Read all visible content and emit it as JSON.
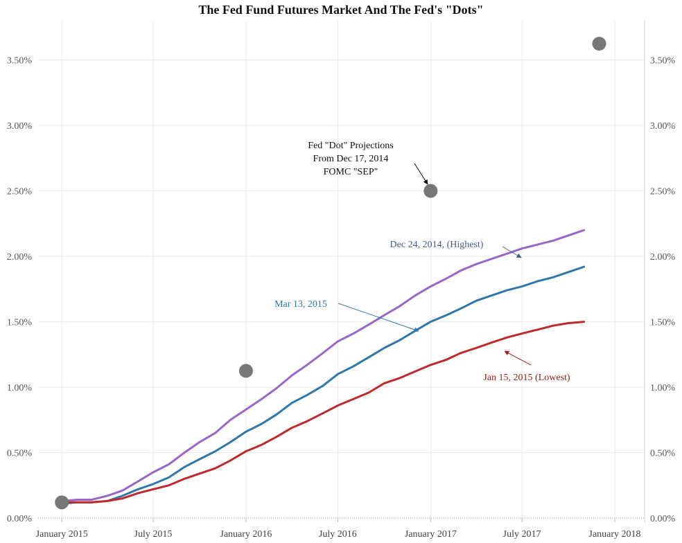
{
  "chart_data": {
    "type": "line",
    "title": "The Fed Fund Futures Market And  The Fed's \"Dots\"",
    "xlabel": "",
    "ylabel": "",
    "x_domain": [
      "2014-11-15",
      "2018-03-01"
    ],
    "ylim": [
      0,
      3.8
    ],
    "y_ticks": [
      0,
      0.5,
      1.0,
      1.5,
      2.0,
      2.5,
      3.0,
      3.5
    ],
    "y_tick_labels": [
      "0.00%",
      "0.50%",
      "1.00%",
      "1.50%",
      "2.00%",
      "2.50%",
      "3.00%",
      "3.50%"
    ],
    "x_ticks": [
      {
        "date": "2015-01-01",
        "label": "January 2015"
      },
      {
        "date": "2015-07-01",
        "label": "July 2015"
      },
      {
        "date": "2016-01-01",
        "label": "January 2016"
      },
      {
        "date": "2016-07-01",
        "label": "July 2016"
      },
      {
        "date": "2017-01-01",
        "label": "January 2017"
      },
      {
        "date": "2017-07-01",
        "label": "July 2017"
      },
      {
        "date": "2018-01-01",
        "label": "January 2018"
      }
    ],
    "grid": true,
    "dual_y_axis": true,
    "series": [
      {
        "name": "Dec 24, 2014, (Highest)",
        "color": "#9966c8",
        "x": [
          "2015-01-01",
          "2015-02-01",
          "2015-03-01",
          "2015-04-01",
          "2015-05-01",
          "2015-06-01",
          "2015-07-01",
          "2015-08-01",
          "2015-09-01",
          "2015-10-01",
          "2015-11-01",
          "2015-12-01",
          "2016-01-01",
          "2016-02-01",
          "2016-03-01",
          "2016-04-01",
          "2016-05-01",
          "2016-06-01",
          "2016-07-01",
          "2016-08-01",
          "2016-09-01",
          "2016-10-01",
          "2016-11-01",
          "2016-12-01",
          "2017-01-01",
          "2017-02-01",
          "2017-03-01",
          "2017-04-01",
          "2017-05-01",
          "2017-06-01",
          "2017-07-01",
          "2017-08-01",
          "2017-09-01",
          "2017-10-01",
          "2017-11-01"
        ],
        "values": [
          0.13,
          0.14,
          0.14,
          0.17,
          0.21,
          0.28,
          0.35,
          0.41,
          0.5,
          0.58,
          0.65,
          0.75,
          0.83,
          0.91,
          0.99,
          1.09,
          1.17,
          1.26,
          1.35,
          1.41,
          1.48,
          1.55,
          1.62,
          1.7,
          1.77,
          1.83,
          1.89,
          1.94,
          1.98,
          2.02,
          2.06,
          2.09,
          2.12,
          2.16,
          2.2
        ]
      },
      {
        "name": "Mar 13, 2015",
        "color": "#2e77a8",
        "x": [
          "2015-01-01",
          "2015-02-01",
          "2015-03-01",
          "2015-04-01",
          "2015-05-01",
          "2015-06-01",
          "2015-07-01",
          "2015-08-01",
          "2015-09-01",
          "2015-10-01",
          "2015-11-01",
          "2015-12-01",
          "2016-01-01",
          "2016-02-01",
          "2016-03-01",
          "2016-04-01",
          "2016-05-01",
          "2016-06-01",
          "2016-07-01",
          "2016-08-01",
          "2016-09-01",
          "2016-10-01",
          "2016-11-01",
          "2016-12-01",
          "2017-01-01",
          "2017-02-01",
          "2017-03-01",
          "2017-04-01",
          "2017-05-01",
          "2017-06-01",
          "2017-07-01",
          "2017-08-01",
          "2017-09-01",
          "2017-10-01",
          "2017-11-01"
        ],
        "values": [
          0.11,
          0.12,
          0.12,
          0.13,
          0.17,
          0.22,
          0.26,
          0.31,
          0.39,
          0.45,
          0.51,
          0.58,
          0.66,
          0.72,
          0.79,
          0.88,
          0.94,
          1.01,
          1.1,
          1.16,
          1.23,
          1.3,
          1.36,
          1.43,
          1.5,
          1.55,
          1.6,
          1.66,
          1.7,
          1.74,
          1.77,
          1.81,
          1.84,
          1.88,
          1.92
        ]
      },
      {
        "name": "Jan 15, 2015 (Lowest)",
        "color": "#c0292b",
        "x": [
          "2015-01-01",
          "2015-02-01",
          "2015-03-01",
          "2015-04-01",
          "2015-05-01",
          "2015-06-01",
          "2015-07-01",
          "2015-08-01",
          "2015-09-01",
          "2015-10-01",
          "2015-11-01",
          "2015-12-01",
          "2016-01-01",
          "2016-02-01",
          "2016-03-01",
          "2016-04-01",
          "2016-05-01",
          "2016-06-01",
          "2016-07-01",
          "2016-08-01",
          "2016-09-01",
          "2016-10-01",
          "2016-11-01",
          "2016-12-01",
          "2017-01-01",
          "2017-02-01",
          "2017-03-01",
          "2017-04-01",
          "2017-05-01",
          "2017-06-01",
          "2017-07-01",
          "2017-08-01",
          "2017-09-01",
          "2017-10-01",
          "2017-11-01"
        ],
        "values": [
          0.12,
          0.12,
          0.12,
          0.13,
          0.15,
          0.19,
          0.22,
          0.25,
          0.3,
          0.34,
          0.38,
          0.44,
          0.51,
          0.56,
          0.62,
          0.69,
          0.74,
          0.8,
          0.86,
          0.91,
          0.96,
          1.03,
          1.07,
          1.12,
          1.17,
          1.21,
          1.26,
          1.3,
          1.34,
          1.38,
          1.41,
          1.44,
          1.47,
          1.49,
          1.5
        ]
      }
    ],
    "dots": {
      "name": "Fed \"Dot\" Projections",
      "color": "#777777",
      "points": [
        {
          "x": "2015-01-01",
          "y": 0.12
        },
        {
          "x": "2016-01-01",
          "y": 1.125
        },
        {
          "x": "2017-01-01",
          "y": 2.5
        },
        {
          "x": "2017-12-01",
          "y": 3.625
        }
      ]
    },
    "annotations": [
      {
        "text": [
          "Fed \"Dot\" Projections",
          "From Dec 17, 2014",
          "FOMC \"SEP\""
        ],
        "color": "#111111"
      },
      {
        "text": [
          "Dec 24, 2014, (Highest)"
        ],
        "color": "#4b5a80"
      },
      {
        "text": [
          "Mar 13, 2015"
        ],
        "color": "#2e77a8"
      },
      {
        "text": [
          "Jan 15, 2015 (Lowest)"
        ],
        "color": "#9c1f22"
      }
    ]
  }
}
